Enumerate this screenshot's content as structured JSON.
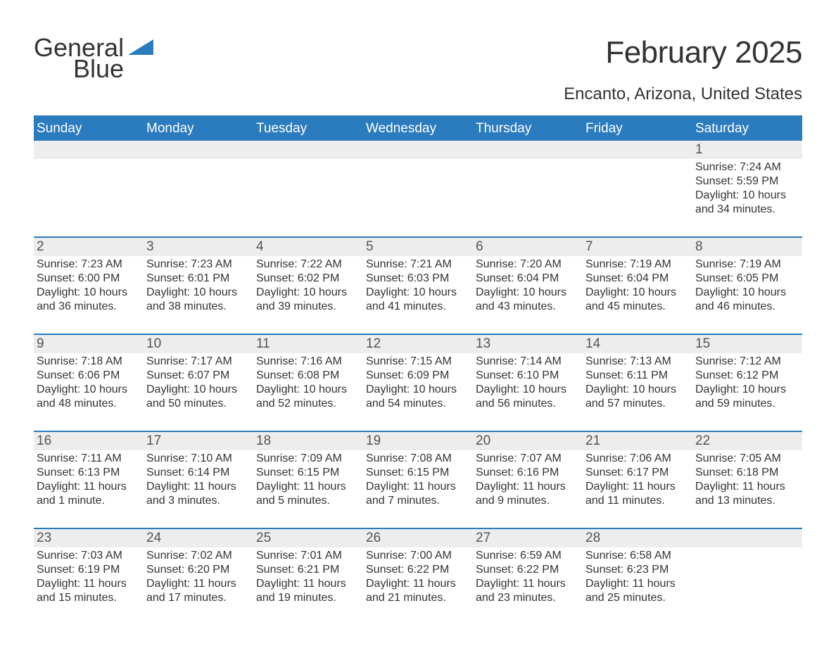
{
  "logo": {
    "text1": "General",
    "text2": "Blue",
    "text_color": "#333333",
    "accent_color": "#2b7bbf"
  },
  "title": "February 2025",
  "location": "Encanto, Arizona, United States",
  "colors": {
    "header_bg": "#2b7bbf",
    "header_text": "#ffffff",
    "daynum_bg": "#ededed",
    "border": "#2b7bbf",
    "body_text": "#333333",
    "background": "#ffffff"
  },
  "weekdays": [
    "Sunday",
    "Monday",
    "Tuesday",
    "Wednesday",
    "Thursday",
    "Friday",
    "Saturday"
  ],
  "weeks": [
    [
      {
        "n": "",
        "lines": []
      },
      {
        "n": "",
        "lines": []
      },
      {
        "n": "",
        "lines": []
      },
      {
        "n": "",
        "lines": []
      },
      {
        "n": "",
        "lines": []
      },
      {
        "n": "",
        "lines": []
      },
      {
        "n": "1",
        "lines": [
          "Sunrise: 7:24 AM",
          "Sunset: 5:59 PM",
          "Daylight: 10 hours and 34 minutes."
        ]
      }
    ],
    [
      {
        "n": "2",
        "lines": [
          "Sunrise: 7:23 AM",
          "Sunset: 6:00 PM",
          "Daylight: 10 hours and 36 minutes."
        ]
      },
      {
        "n": "3",
        "lines": [
          "Sunrise: 7:23 AM",
          "Sunset: 6:01 PM",
          "Daylight: 10 hours and 38 minutes."
        ]
      },
      {
        "n": "4",
        "lines": [
          "Sunrise: 7:22 AM",
          "Sunset: 6:02 PM",
          "Daylight: 10 hours and 39 minutes."
        ]
      },
      {
        "n": "5",
        "lines": [
          "Sunrise: 7:21 AM",
          "Sunset: 6:03 PM",
          "Daylight: 10 hours and 41 minutes."
        ]
      },
      {
        "n": "6",
        "lines": [
          "Sunrise: 7:20 AM",
          "Sunset: 6:04 PM",
          "Daylight: 10 hours and 43 minutes."
        ]
      },
      {
        "n": "7",
        "lines": [
          "Sunrise: 7:19 AM",
          "Sunset: 6:04 PM",
          "Daylight: 10 hours and 45 minutes."
        ]
      },
      {
        "n": "8",
        "lines": [
          "Sunrise: 7:19 AM",
          "Sunset: 6:05 PM",
          "Daylight: 10 hours and 46 minutes."
        ]
      }
    ],
    [
      {
        "n": "9",
        "lines": [
          "Sunrise: 7:18 AM",
          "Sunset: 6:06 PM",
          "Daylight: 10 hours and 48 minutes."
        ]
      },
      {
        "n": "10",
        "lines": [
          "Sunrise: 7:17 AM",
          "Sunset: 6:07 PM",
          "Daylight: 10 hours and 50 minutes."
        ]
      },
      {
        "n": "11",
        "lines": [
          "Sunrise: 7:16 AM",
          "Sunset: 6:08 PM",
          "Daylight: 10 hours and 52 minutes."
        ]
      },
      {
        "n": "12",
        "lines": [
          "Sunrise: 7:15 AM",
          "Sunset: 6:09 PM",
          "Daylight: 10 hours and 54 minutes."
        ]
      },
      {
        "n": "13",
        "lines": [
          "Sunrise: 7:14 AM",
          "Sunset: 6:10 PM",
          "Daylight: 10 hours and 56 minutes."
        ]
      },
      {
        "n": "14",
        "lines": [
          "Sunrise: 7:13 AM",
          "Sunset: 6:11 PM",
          "Daylight: 10 hours and 57 minutes."
        ]
      },
      {
        "n": "15",
        "lines": [
          "Sunrise: 7:12 AM",
          "Sunset: 6:12 PM",
          "Daylight: 10 hours and 59 minutes."
        ]
      }
    ],
    [
      {
        "n": "16",
        "lines": [
          "Sunrise: 7:11 AM",
          "Sunset: 6:13 PM",
          "Daylight: 11 hours and 1 minute."
        ]
      },
      {
        "n": "17",
        "lines": [
          "Sunrise: 7:10 AM",
          "Sunset: 6:14 PM",
          "Daylight: 11 hours and 3 minutes."
        ]
      },
      {
        "n": "18",
        "lines": [
          "Sunrise: 7:09 AM",
          "Sunset: 6:15 PM",
          "Daylight: 11 hours and 5 minutes."
        ]
      },
      {
        "n": "19",
        "lines": [
          "Sunrise: 7:08 AM",
          "Sunset: 6:15 PM",
          "Daylight: 11 hours and 7 minutes."
        ]
      },
      {
        "n": "20",
        "lines": [
          "Sunrise: 7:07 AM",
          "Sunset: 6:16 PM",
          "Daylight: 11 hours and 9 minutes."
        ]
      },
      {
        "n": "21",
        "lines": [
          "Sunrise: 7:06 AM",
          "Sunset: 6:17 PM",
          "Daylight: 11 hours and 11 minutes."
        ]
      },
      {
        "n": "22",
        "lines": [
          "Sunrise: 7:05 AM",
          "Sunset: 6:18 PM",
          "Daylight: 11 hours and 13 minutes."
        ]
      }
    ],
    [
      {
        "n": "23",
        "lines": [
          "Sunrise: 7:03 AM",
          "Sunset: 6:19 PM",
          "Daylight: 11 hours and 15 minutes."
        ]
      },
      {
        "n": "24",
        "lines": [
          "Sunrise: 7:02 AM",
          "Sunset: 6:20 PM",
          "Daylight: 11 hours and 17 minutes."
        ]
      },
      {
        "n": "25",
        "lines": [
          "Sunrise: 7:01 AM",
          "Sunset: 6:21 PM",
          "Daylight: 11 hours and 19 minutes."
        ]
      },
      {
        "n": "26",
        "lines": [
          "Sunrise: 7:00 AM",
          "Sunset: 6:22 PM",
          "Daylight: 11 hours and 21 minutes."
        ]
      },
      {
        "n": "27",
        "lines": [
          "Sunrise: 6:59 AM",
          "Sunset: 6:22 PM",
          "Daylight: 11 hours and 23 minutes."
        ]
      },
      {
        "n": "28",
        "lines": [
          "Sunrise: 6:58 AM",
          "Sunset: 6:23 PM",
          "Daylight: 11 hours and 25 minutes."
        ]
      },
      {
        "n": "",
        "lines": []
      }
    ]
  ]
}
